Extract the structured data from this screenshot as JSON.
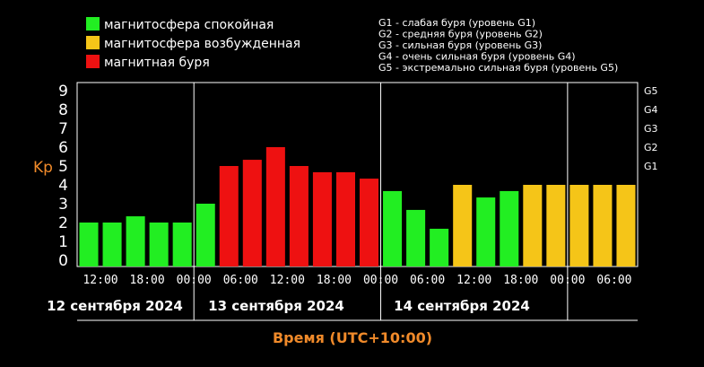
{
  "legend": [
    {
      "label": "магнитосфера спокойная",
      "color": "#22ee22"
    },
    {
      "label": "магнитосфера возбужденная",
      "color": "#f5c518"
    },
    {
      "label": "магнитная буря",
      "color": "#ee1111"
    }
  ],
  "storm_levels": [
    "G1 - слабая буря (уровень G1)",
    "G2 - средняя буря (уровень G2)",
    "G3 - сильная буря (уровень G3)",
    "G4 - очень сильная буря (уровень G4)",
    "G5 - экстремально сильная буря (уровень G5)"
  ],
  "chart_data": {
    "type": "bar",
    "ylabel": "Kp",
    "xlabel": "Время (UTC+10:00)",
    "ylim": [
      0,
      9
    ],
    "y_ticks": [
      "0",
      "1",
      "2",
      "3",
      "4",
      "5",
      "6",
      "7",
      "8",
      "9"
    ],
    "right_ticks": [
      {
        "label": "G1",
        "value": 5
      },
      {
        "label": "G2",
        "value": 6
      },
      {
        "label": "G3",
        "value": 7
      },
      {
        "label": "G4",
        "value": 8
      },
      {
        "label": "G5",
        "value": 9
      }
    ],
    "x_tick_labels": [
      "12:00",
      "18:00",
      "00:00",
      "06:00",
      "12:00",
      "18:00",
      "00:00",
      "06:00",
      "12:00",
      "18:00",
      "00:00",
      "06:00"
    ],
    "date_labels": [
      "12 сентября 2024",
      "13 сентября 2024",
      "14 сентября 2024"
    ],
    "colors": {
      "quiet": "#22ee22",
      "active": "#f5c518",
      "storm": "#ee1111"
    },
    "values": [
      2,
      2,
      2.33,
      2,
      2,
      3,
      5,
      5.33,
      6,
      5,
      4.67,
      4.67,
      4.33,
      3.67,
      2.67,
      1.67,
      4,
      3.33,
      3.67,
      4,
      4,
      4,
      4,
      4
    ],
    "bar_status": [
      "quiet",
      "quiet",
      "quiet",
      "quiet",
      "quiet",
      "quiet",
      "storm",
      "storm",
      "storm",
      "storm",
      "storm",
      "storm",
      "storm",
      "quiet",
      "quiet",
      "quiet",
      "active",
      "quiet",
      "quiet",
      "active",
      "active",
      "active",
      "active",
      "active"
    ],
    "grid": true
  }
}
